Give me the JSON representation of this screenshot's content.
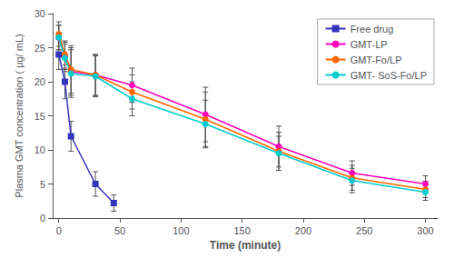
{
  "chart_data": {
    "type": "line",
    "xlabel": "Time (minute)",
    "ylabel": "Plasma GMT concentration ( μg/ mL)",
    "xlim": [
      -5,
      310
    ],
    "ylim": [
      0,
      30
    ],
    "xticks": [
      0,
      50,
      100,
      150,
      200,
      250,
      300
    ],
    "yticks": [
      0,
      5,
      10,
      15,
      20,
      25,
      30
    ],
    "grid": false,
    "legend": "upper right",
    "series": [
      {
        "name": "Free drug",
        "color": "#3333bb",
        "marker": "square",
        "x": [
          0,
          5,
          10,
          30,
          45,
          60
        ],
        "values": [
          24.0,
          20.0,
          12.0,
          5.0,
          2.2,
          null
        ],
        "yerr": [
          2.2,
          2.5,
          2.2,
          1.8,
          1.2,
          null
        ]
      },
      {
        "name": "GMT-LP",
        "color": "#ff00bb",
        "marker": "circle",
        "x": [
          0,
          5,
          10,
          30,
          60,
          120,
          180,
          240,
          300
        ],
        "values": [
          26.5,
          23.8,
          21.5,
          21.0,
          19.5,
          15.2,
          10.5,
          6.6,
          5.0
        ],
        "yerr": [
          1.8,
          2.0,
          3.5,
          3.0,
          2.5,
          4.0,
          3.0,
          1.8,
          1.2
        ]
      },
      {
        "name": "GMT-Fo/LP",
        "color": "#ff6600",
        "marker": "circle",
        "x": [
          0,
          5,
          10,
          30,
          60,
          120,
          180,
          240,
          300
        ],
        "values": [
          27.0,
          24.0,
          21.8,
          21.0,
          18.5,
          14.5,
          9.8,
          5.9,
          4.2
        ],
        "yerr": [
          1.8,
          2.0,
          3.5,
          3.0,
          2.5,
          4.0,
          2.8,
          1.8,
          1.2
        ]
      },
      {
        "name": "GMT- SoS-Fo/LP",
        "color": "#00cccc",
        "marker": "circle",
        "x": [
          0,
          5,
          10,
          30,
          60,
          120,
          180,
          240,
          300
        ],
        "values": [
          26.5,
          23.5,
          21.2,
          20.8,
          17.5,
          13.8,
          9.5,
          5.5,
          3.8
        ],
        "yerr": [
          1.8,
          2.0,
          3.5,
          3.0,
          2.5,
          3.5,
          2.5,
          1.8,
          1.2
        ]
      }
    ]
  }
}
